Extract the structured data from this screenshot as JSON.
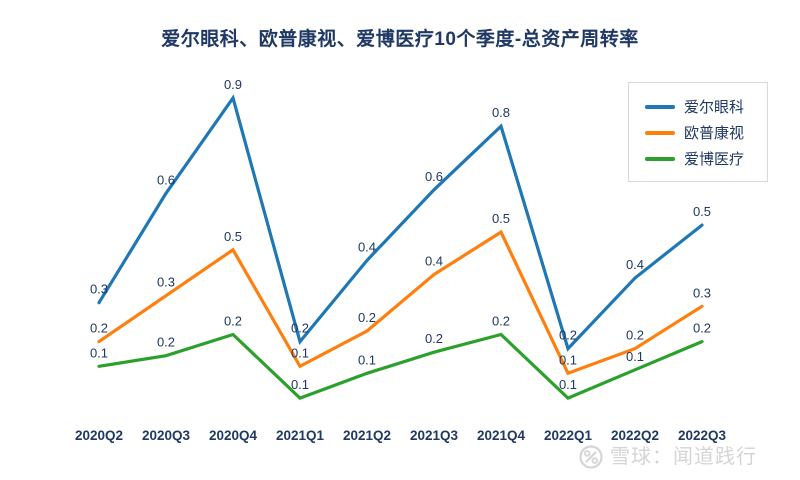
{
  "header": {
    "title": "爱尔眼科、欧普康视、爱博医疗10个季度-总资产周转率"
  },
  "colors": {
    "title_text": "#1f3864",
    "data_label_text": "#1f3864",
    "axis_label_text": "#1f3864",
    "legend_text": "#1f3864",
    "legend_border": "#d8d8d8",
    "background": "#ffffff",
    "watermark": "#d5d5d5",
    "series_blue": "#1f77b4",
    "series_orange": "#ff7f0e",
    "series_green": "#2ca02c"
  },
  "legend": {
    "position": "top-right",
    "items": [
      {
        "label": "爱尔眼科",
        "color": "#1f77b4"
      },
      {
        "label": "欧普康视",
        "color": "#ff7f0e"
      },
      {
        "label": "爱博医疗",
        "color": "#2ca02c"
      }
    ]
  },
  "chart_data": {
    "type": "line",
    "title": "爱尔眼科、欧普康视、爱博医疗10个季度-总资产周转率",
    "xlabel": "",
    "ylabel": "",
    "categories": [
      "2020Q2",
      "2020Q3",
      "2020Q4",
      "2021Q1",
      "2021Q2",
      "2021Q3",
      "2021Q4",
      "2022Q1",
      "2022Q2",
      "2022Q3"
    ],
    "series": [
      {
        "name": "爱尔眼科",
        "color": "#1f77b4",
        "values": [
          0.3,
          0.6,
          0.9,
          0.2,
          0.4,
          0.6,
          0.8,
          0.2,
          0.4,
          0.5
        ],
        "plot_values": [
          0.32,
          0.63,
          0.9,
          0.21,
          0.44,
          0.64,
          0.82,
          0.19,
          0.39,
          0.54
        ]
      },
      {
        "name": "欧普康视",
        "color": "#ff7f0e",
        "values": [
          0.2,
          0.3,
          0.5,
          0.1,
          0.2,
          0.4,
          0.5,
          0.1,
          0.2,
          0.3
        ],
        "plot_values": [
          0.21,
          0.34,
          0.47,
          0.14,
          0.24,
          0.4,
          0.52,
          0.12,
          0.19,
          0.31
        ]
      },
      {
        "name": "爱博医疗",
        "color": "#2ca02c",
        "values": [
          0.1,
          0.2,
          0.2,
          0.1,
          0.1,
          0.2,
          0.2,
          0.1,
          0.1,
          0.2
        ],
        "plot_values": [
          0.14,
          0.17,
          0.23,
          0.05,
          0.12,
          0.18,
          0.23,
          0.05,
          0.13,
          0.21
        ]
      }
    ],
    "data_labels_visible": true,
    "grid": false,
    "y_axis_visible": false,
    "x_axis_line_visible": false,
    "ylim": [
      0,
      1.0
    ],
    "legend_position": "top-right",
    "layout": {
      "x_start": 99,
      "x_step": 67,
      "y_zero": 415.7,
      "y_per_unit": 353,
      "label_offset": 9,
      "line_width": 3.2,
      "category_label_y": 440,
      "data_label_font_size": 13,
      "category_font_size": 13.5
    }
  },
  "watermark": {
    "source_label": "雪球：闻道践行",
    "icon": "xueqiu-logo"
  }
}
